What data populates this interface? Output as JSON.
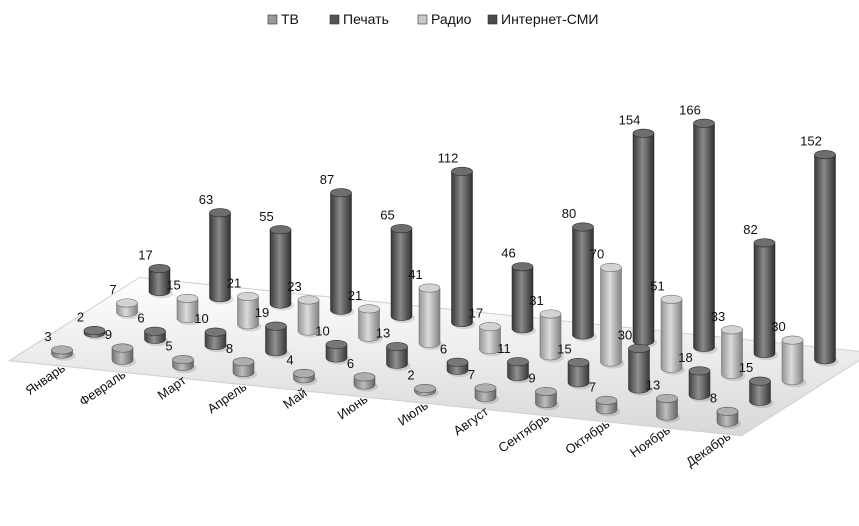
{
  "chart_data": {
    "type": "bar",
    "subtype": "3d-cylinder",
    "title": "",
    "xlabel": "",
    "ylabel": "",
    "legend_position": "top",
    "categories": [
      "Январь",
      "Февраль",
      "Март",
      "Апрель",
      "Май",
      "Июнь",
      "Июль",
      "Август",
      "Сентябрь",
      "Октябрь",
      "Ноябрь",
      "Декабрь"
    ],
    "series": [
      {
        "name": "ТВ",
        "color": "#9a9a9a",
        "values": [
          3,
          9,
          5,
          8,
          4,
          6,
          2,
          7,
          9,
          7,
          13,
          8
        ]
      },
      {
        "name": "Печать",
        "color": "#555555",
        "values": [
          2,
          6,
          10,
          19,
          10,
          13,
          6,
          11,
          15,
          30,
          18,
          15
        ]
      },
      {
        "name": "Радио",
        "color": "#c8c8c8",
        "values": [
          7,
          15,
          21,
          23,
          21,
          41,
          17,
          31,
          70,
          51,
          33,
          30
        ]
      },
      {
        "name": "Интернет-СМИ",
        "color": "#4a4a4a",
        "values": [
          17,
          63,
          55,
          87,
          65,
          112,
          46,
          80,
          154,
          166,
          82,
          152
        ]
      }
    ]
  }
}
